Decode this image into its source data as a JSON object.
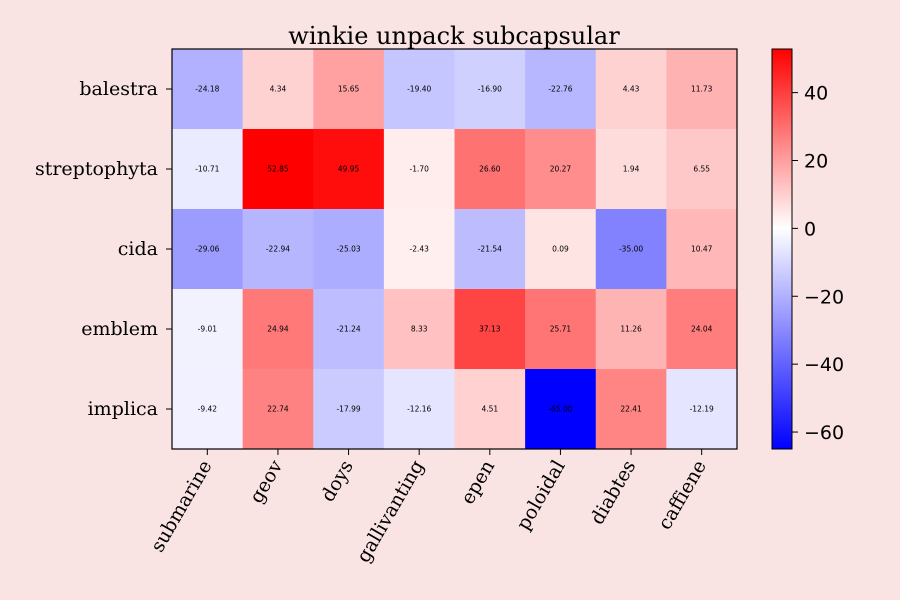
{
  "chart_data": {
    "type": "heatmap",
    "title": "winkie unpack subcapsular",
    "xlabel": "",
    "ylabel": "",
    "x_categories": [
      "submarine",
      "geov",
      "doys",
      "gallivanting",
      "epen",
      "poloidal",
      "diabtes",
      "caffiene"
    ],
    "y_categories": [
      "balestra",
      "streptophyta",
      "cida",
      "emblem",
      "implica"
    ],
    "values": [
      [
        -24.18,
        4.34,
        15.65,
        -19.4,
        -16.9,
        -22.76,
        4.43,
        11.73
      ],
      [
        -10.71,
        52.85,
        49.95,
        -1.7,
        26.6,
        20.27,
        1.94,
        6.55
      ],
      [
        -29.06,
        -22.94,
        -25.03,
        -2.43,
        -21.54,
        0.09,
        -35.0,
        10.47
      ],
      [
        -9.01,
        24.94,
        -21.24,
        8.33,
        37.13,
        25.71,
        11.26,
        24.04
      ],
      [
        -9.42,
        22.74,
        -17.99,
        -12.16,
        4.51,
        -65.0,
        22.41,
        -12.19
      ]
    ],
    "value_labels": [
      [
        "-24.18",
        "4.34",
        "15.65",
        "-19.40",
        "-16.90",
        "-22.76",
        "4.43",
        "11.73"
      ],
      [
        "-10.71",
        "52.85",
        "49.95",
        "-1.70",
        "26.60",
        "20.27",
        "1.94",
        "6.55"
      ],
      [
        "-29.06",
        "-22.94",
        "-25.03",
        "-2.43",
        "-21.54",
        "0.09",
        "-35.00",
        "10.47"
      ],
      [
        "-9.01",
        "24.94",
        "-21.24",
        "8.33",
        "37.13",
        "25.71",
        "11.26",
        "24.04"
      ],
      [
        "-9.42",
        "22.74",
        "-17.99",
        "-12.16",
        "4.51",
        "-65.00",
        "22.41",
        "-12.19"
      ]
    ],
    "colormap": "bwr",
    "color_range": [
      -65,
      52.85
    ],
    "colorbar_ticks": [
      -60,
      -40,
      -20,
      0,
      20,
      40
    ],
    "colorbar_tick_labels": [
      "−60",
      "−40",
      "−20",
      "0",
      "20",
      "40"
    ],
    "colors": {
      "background": "#f9e3e3",
      "low": "#0000ff",
      "mid": "#ffffff",
      "high": "#ff0000"
    }
  }
}
